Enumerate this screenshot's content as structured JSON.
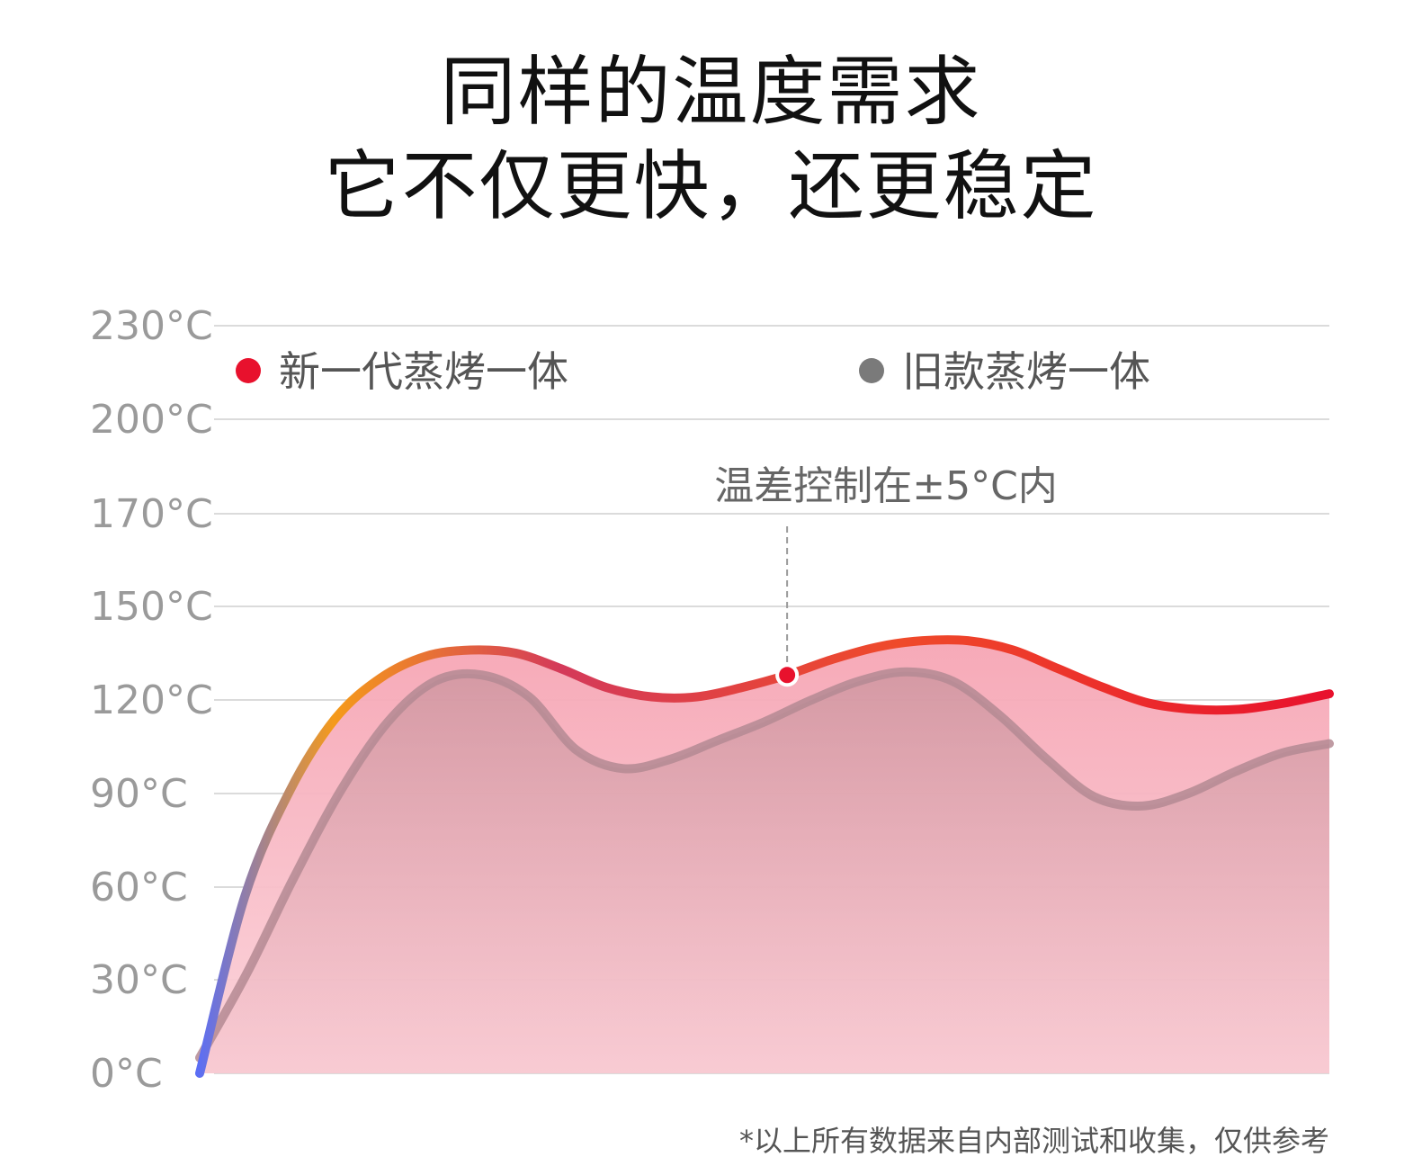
{
  "header": {
    "title_line1": "同样的温度需求",
    "title_line2": "它不仅更快，还更稳定"
  },
  "chart_data": {
    "type": "area",
    "y_ticks": [
      "0°C",
      "30°C",
      "60°C",
      "90°C",
      "120°C",
      "150°C",
      "170°C",
      "200°C",
      "230°C"
    ],
    "grid": true,
    "legend": {
      "placement": "top",
      "entries": [
        "新一代蒸烤一体",
        "旧款蒸烤一体"
      ]
    },
    "series": [
      {
        "name": "新一代蒸烤一体",
        "color": "#e8112d",
        "gradient_colors": [
          "#5b6ef5",
          "#f59a1a",
          "#d43a5a",
          "#e8112d"
        ],
        "values": [
          0,
          57,
          91,
          114,
          127,
          134,
          136,
          135,
          130,
          124,
          121,
          121,
          124,
          128,
          133,
          137,
          139,
          139,
          136,
          130,
          124,
          119,
          117,
          117,
          119,
          122
        ]
      },
      {
        "name": "旧款蒸烤一体",
        "color": "#7a7a7a",
        "values": [
          5,
          32,
          63,
          91,
          113,
          126,
          128,
          121,
          104,
          98,
          101,
          107,
          113,
          120,
          126,
          129,
          126,
          115,
          101,
          89,
          86,
          90,
          97,
          103,
          106
        ]
      }
    ],
    "annotation": {
      "text": "温差控制在±5°C内",
      "series": "新一代蒸烤一体",
      "point_index": 13
    }
  },
  "footnote": "*以上所有数据来自内部测试和收集，仅供参考"
}
